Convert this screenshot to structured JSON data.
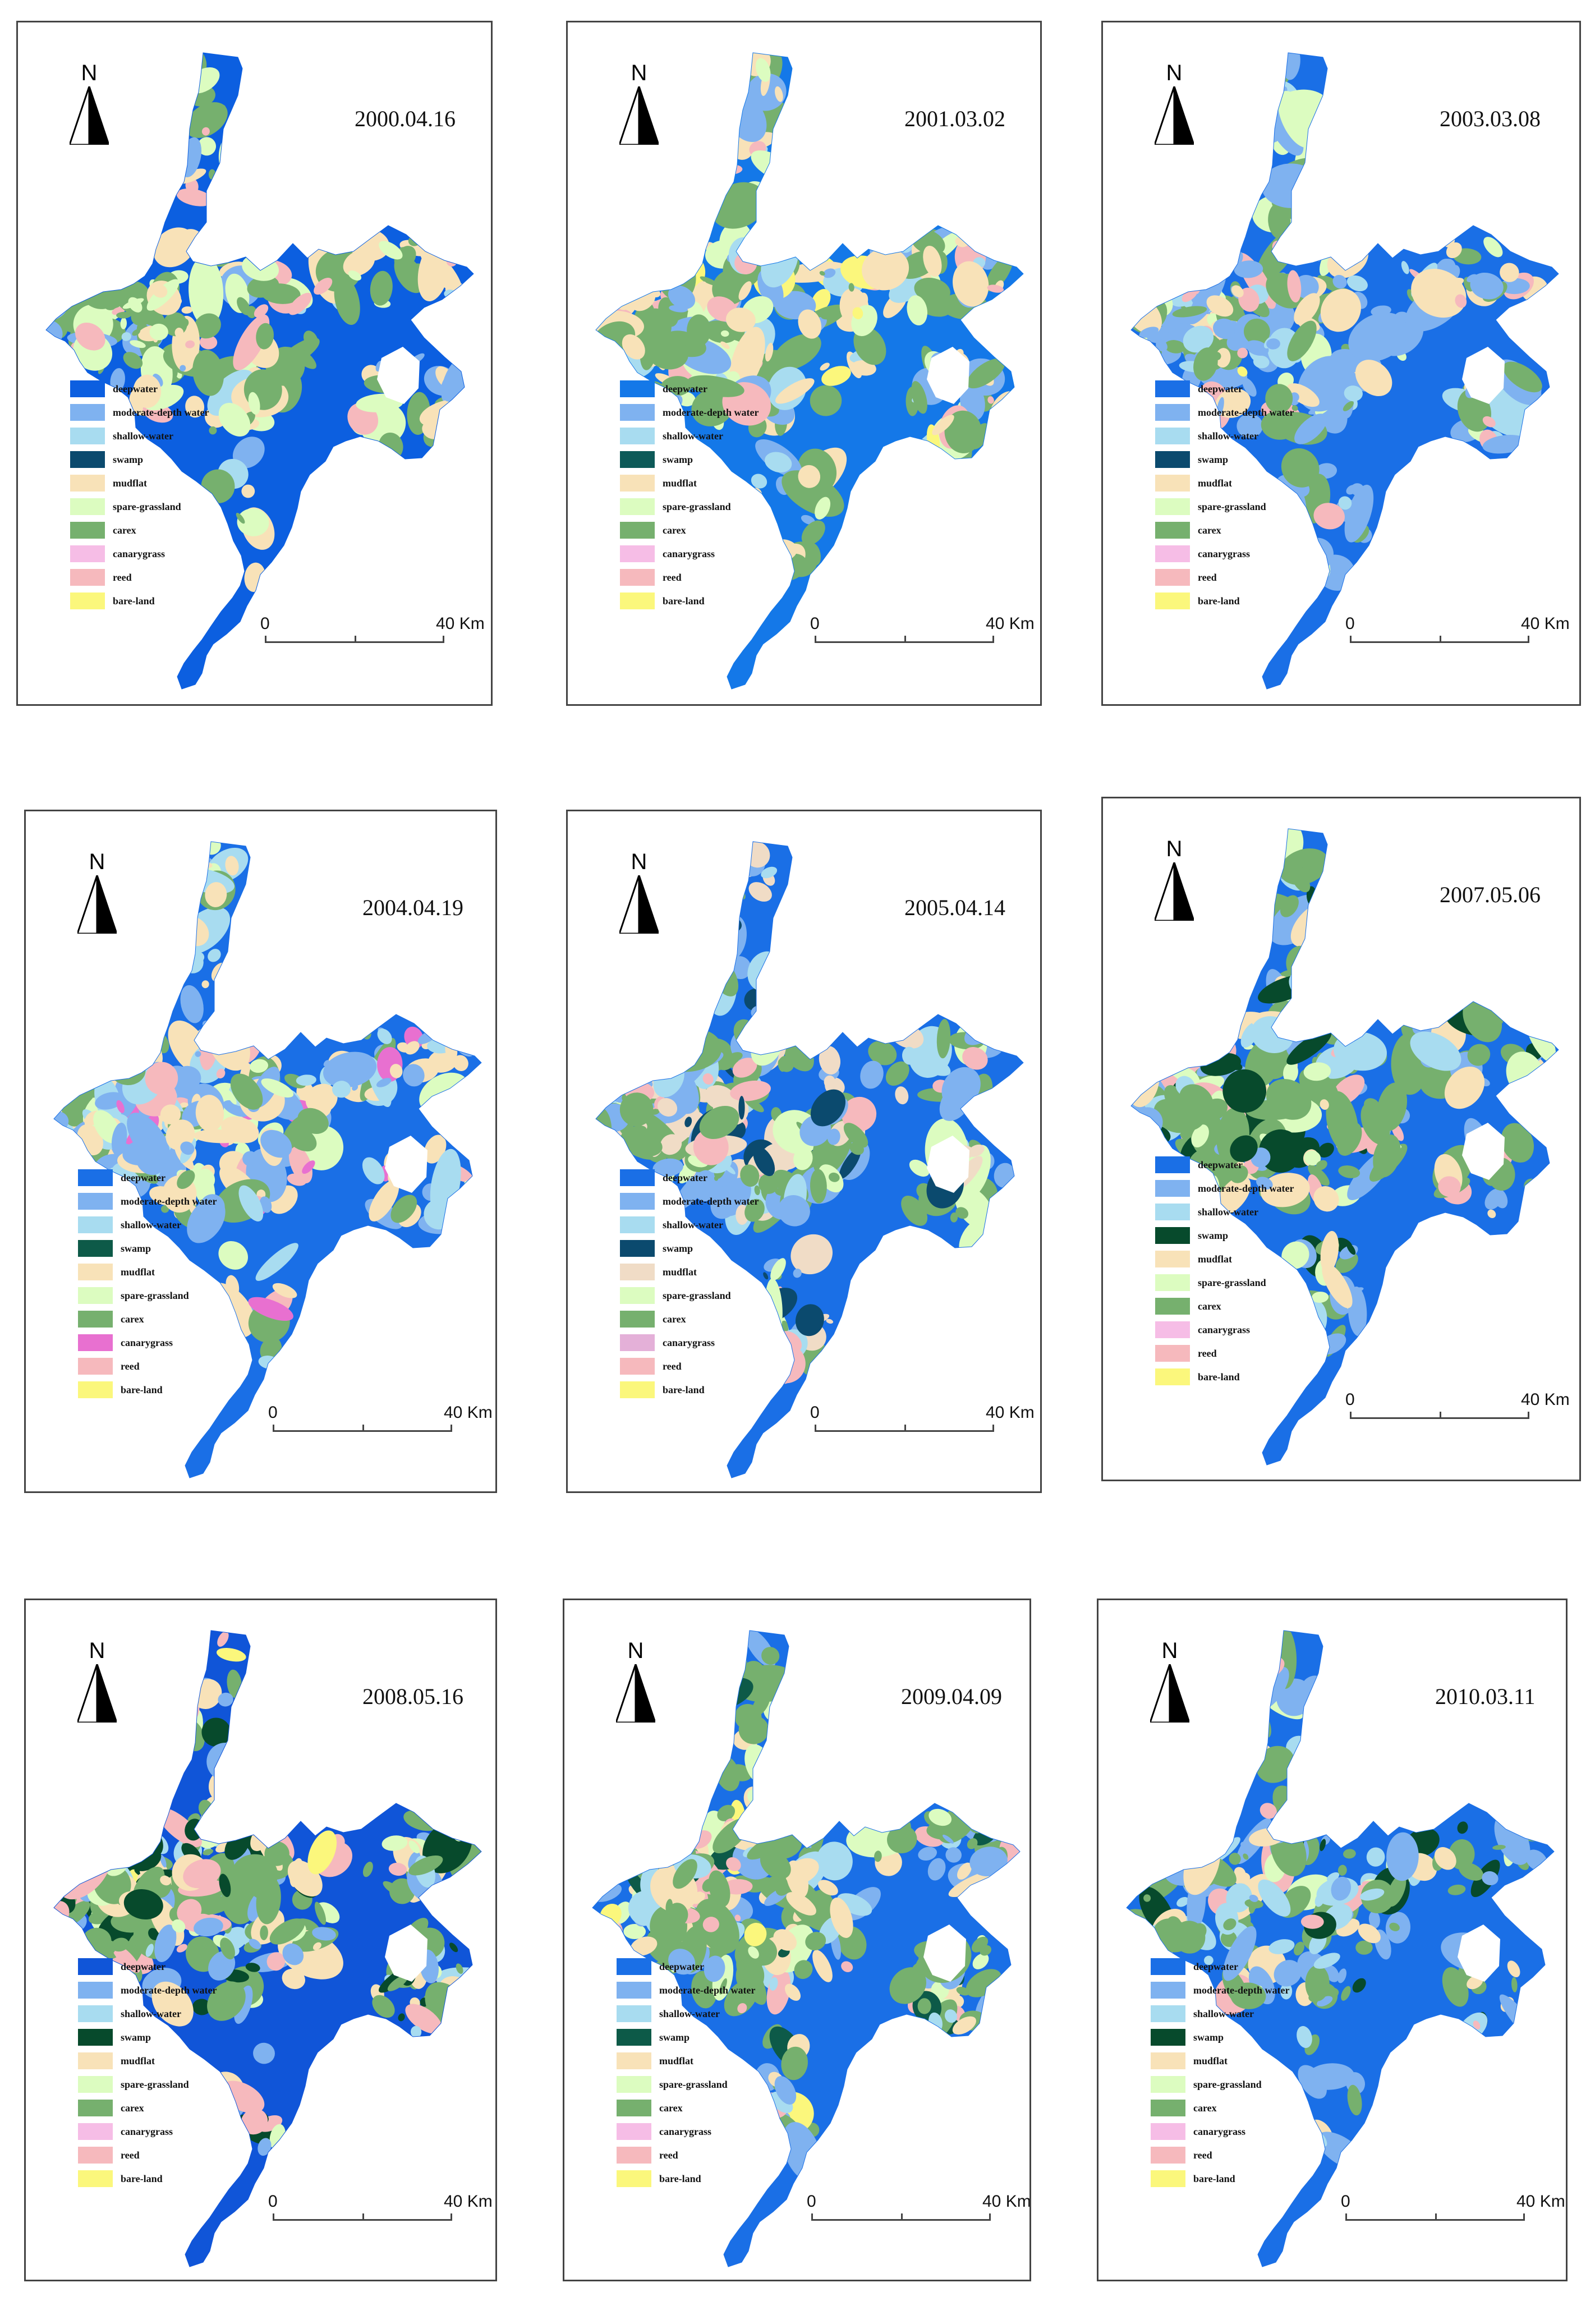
{
  "north_label": "N",
  "scale_bar": {
    "start_label": "0",
    "end_label": "40 Km"
  },
  "legend_items": [
    {
      "label": "deepwater",
      "key": "deep"
    },
    {
      "label": "moderate-depth water",
      "key": "mod"
    },
    {
      "label": "shallow-water",
      "key": "shal"
    },
    {
      "label": "swamp",
      "key": "swamp"
    },
    {
      "label": "mudflat",
      "key": "mud"
    },
    {
      "label": "spare-grassland",
      "key": "grass"
    },
    {
      "label": "carex",
      "key": "carex"
    },
    {
      "label": "canarygrass",
      "key": "canary"
    },
    {
      "label": "reed",
      "key": "reed"
    },
    {
      "label": "bare-land",
      "key": "bare"
    }
  ],
  "colors": {
    "deep": "#1a6fe6",
    "mod": "#7fb2f0",
    "shal": "#a8dcf0",
    "swamp": "#0d5a58",
    "mud": "#f8e2b8",
    "grass": "#dcfcc0",
    "carex": "#76b06e",
    "canary": "#f6bde6",
    "reed": "#f6b9bd",
    "bare": "#fbf77c"
  },
  "maps": [
    {
      "date": "2000.04.16",
      "colors": {
        "deep": "#0c5fe0",
        "swamp": "#0b4a6e"
      },
      "cover": {
        "deep": 0.62,
        "mod": 0.04,
        "shal": 0.02,
        "mud": 0.08,
        "grass": 0.06,
        "carex": 0.13,
        "reed": 0.05
      }
    },
    {
      "date": "2001.03.02",
      "colors": {
        "deep": "#1478e8",
        "swamp": "#0d5a58"
      },
      "cover": {
        "deep": 0.34,
        "mod": 0.08,
        "shal": 0.05,
        "mud": 0.2,
        "grass": 0.08,
        "carex": 0.17,
        "reed": 0.06,
        "bare": 0.02
      }
    },
    {
      "date": "2003.03.08",
      "colors": {
        "deep": "#1a6fe6",
        "swamp": "#0b4a6e"
      },
      "cover": {
        "deep": 0.44,
        "mod": 0.22,
        "shal": 0.05,
        "mud": 0.07,
        "grass": 0.05,
        "carex": 0.11,
        "reed": 0.05,
        "bare": 0.01
      }
    },
    {
      "date": "2004.04.19",
      "colors": {
        "deep": "#1a6fe6",
        "swamp": "#0d5a48",
        "canary": "#e870d0"
      },
      "cover": {
        "deep": 0.3,
        "mod": 0.15,
        "shal": 0.1,
        "mud": 0.22,
        "grass": 0.06,
        "carex": 0.09,
        "canary": 0.04,
        "reed": 0.04
      }
    },
    {
      "date": "2005.04.14",
      "colors": {
        "deep": "#1a6fe6",
        "swamp": "#0b4a6e",
        "mud": "#f0dcc6",
        "canary": "#e4b0d8"
      },
      "cover": {
        "deep": 0.36,
        "mod": 0.1,
        "shal": 0.04,
        "swamp": 0.05,
        "mud": 0.12,
        "grass": 0.05,
        "carex": 0.22,
        "reed": 0.06
      }
    },
    {
      "date": "2007.05.06",
      "colors": {
        "deep": "#1a6fe6",
        "swamp": "#074a2c"
      },
      "cover": {
        "deep": 0.45,
        "mod": 0.08,
        "shal": 0.03,
        "swamp": 0.08,
        "mud": 0.06,
        "grass": 0.06,
        "carex": 0.19,
        "reed": 0.05
      }
    },
    {
      "date": "2008.05.16",
      "colors": {
        "deep": "#1055d8",
        "swamp": "#074a2c"
      },
      "cover": {
        "deep": 0.38,
        "mod": 0.08,
        "shal": 0.04,
        "swamp": 0.06,
        "mud": 0.1,
        "grass": 0.06,
        "carex": 0.22,
        "reed": 0.05,
        "bare": 0.01
      }
    },
    {
      "date": "2009.04.09",
      "colors": {
        "deep": "#1a6fe6",
        "swamp": "#0d5a48"
      },
      "cover": {
        "deep": 0.4,
        "mod": 0.08,
        "shal": 0.04,
        "swamp": 0.04,
        "mud": 0.1,
        "grass": 0.06,
        "carex": 0.21,
        "reed": 0.06,
        "bare": 0.01
      }
    },
    {
      "date": "2010.03.11",
      "colors": {
        "deep": "#1a6fe6",
        "swamp": "#074a2c"
      },
      "cover": {
        "deep": 0.66,
        "mod": 0.08,
        "shal": 0.04,
        "swamp": 0.02,
        "mud": 0.05,
        "grass": 0.03,
        "carex": 0.1,
        "reed": 0.02
      }
    }
  ]
}
